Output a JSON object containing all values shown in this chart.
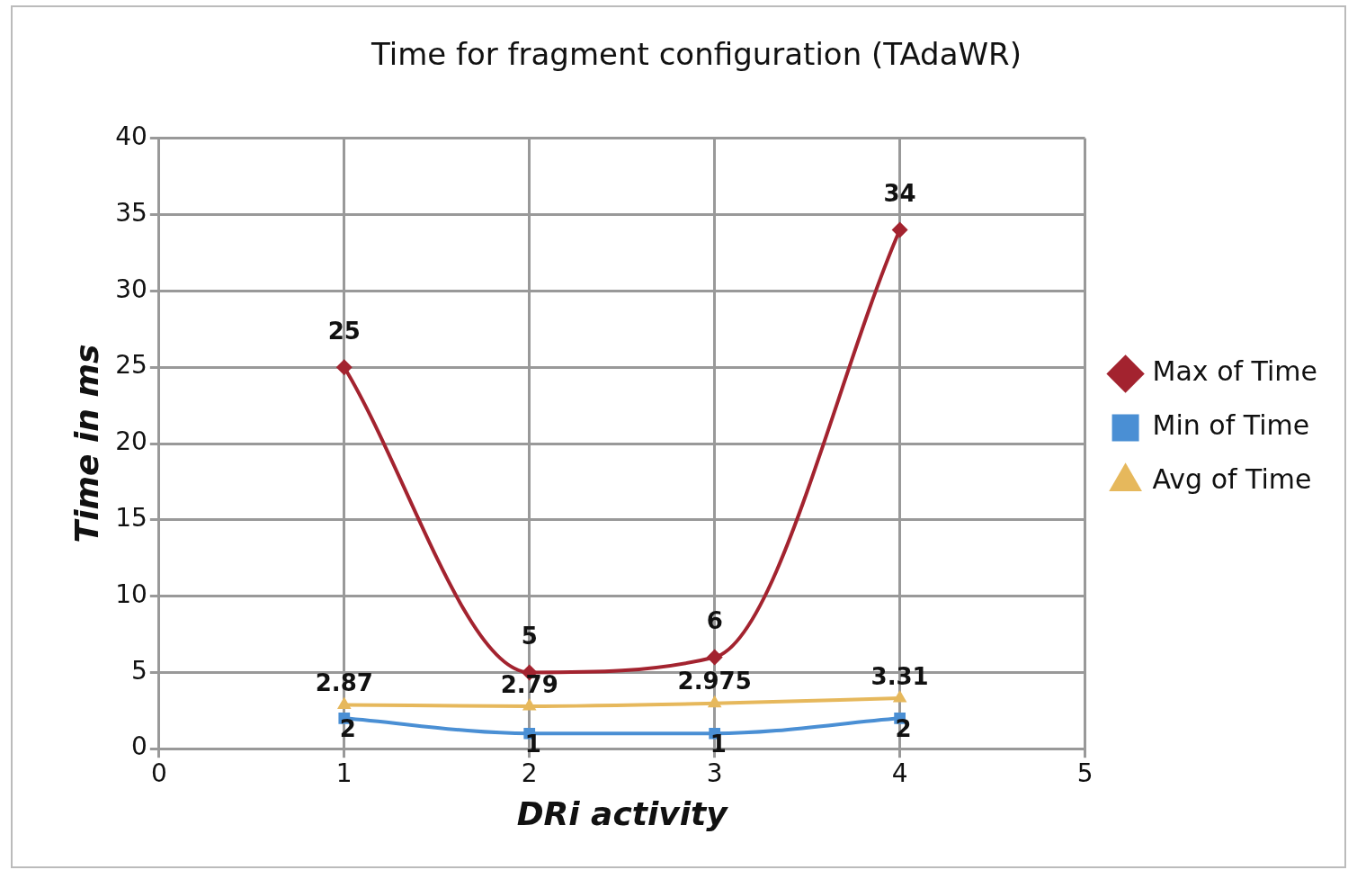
{
  "chart_data": {
    "type": "line",
    "title": "Time for fragment configuration (TAdaWR)",
    "xlabel": "DRi activity",
    "ylabel": "Time in ms",
    "x": [
      1,
      2,
      3,
      4
    ],
    "xlim": [
      0,
      5
    ],
    "xticks": [
      0,
      1,
      2,
      3,
      4,
      5
    ],
    "ylim": [
      0,
      40
    ],
    "yticks": [
      0,
      5,
      10,
      15,
      20,
      25,
      30,
      35,
      40
    ],
    "series": [
      {
        "name": "Max of Time",
        "color": "#a3232f",
        "marker": "diamond",
        "values": [
          25,
          5,
          6,
          34
        ]
      },
      {
        "name": "Min of Time",
        "color": "#4a8fd4",
        "marker": "square",
        "values": [
          2,
          1,
          1,
          2
        ]
      },
      {
        "name": "Avg of Time",
        "color": "#e6b85c",
        "marker": "triangle",
        "values": [
          2.87,
          2.79,
          2.975,
          3.31
        ]
      }
    ],
    "grid": true,
    "legend": "right",
    "data_labels": true,
    "line_style": "solid"
  }
}
